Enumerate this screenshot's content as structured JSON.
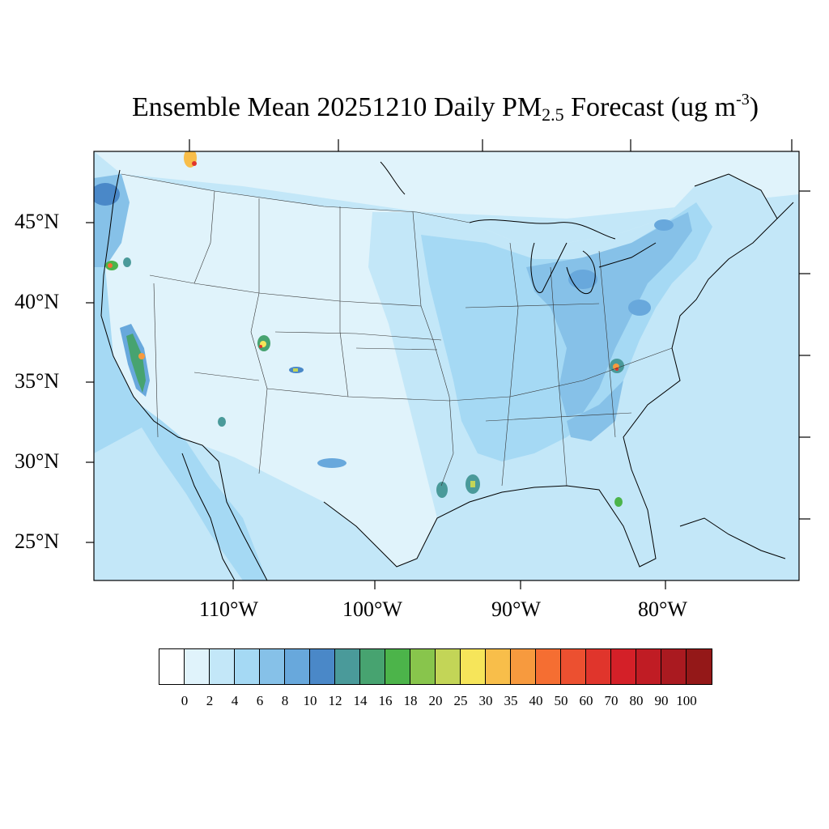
{
  "title": {
    "prefix": "Ensemble Mean 20251210 Daily PM",
    "pm_sub": "2.5",
    "middle": " Forecast (ug m",
    "unit_sup": "-3",
    "suffix": ")"
  },
  "lat_labels": [
    "45°N",
    "40°N",
    "35°N",
    "30°N",
    "25°N"
  ],
  "lon_labels": [
    "110°W",
    "100°W",
    "90°W",
    "80°W"
  ],
  "legend": {
    "levels": [
      "0",
      "2",
      "4",
      "6",
      "8",
      "10",
      "12",
      "14",
      "16",
      "18",
      "20",
      "25",
      "30",
      "35",
      "40",
      "50",
      "60",
      "70",
      "80",
      "90",
      "100"
    ],
    "colors": [
      "#ffffff",
      "#e0f3fb",
      "#c3e7f8",
      "#a5d9f4",
      "#86c1e8",
      "#68a8dc",
      "#4a88c8",
      "#4a9a9a",
      "#47a370",
      "#4cb44a",
      "#88c54c",
      "#c3d557",
      "#f6e55a",
      "#f8be4a",
      "#f79a3e",
      "#f56e32",
      "#ec5030",
      "#e0352c",
      "#d42028",
      "#c01c24",
      "#aa1a20",
      "#941818"
    ]
  }
}
